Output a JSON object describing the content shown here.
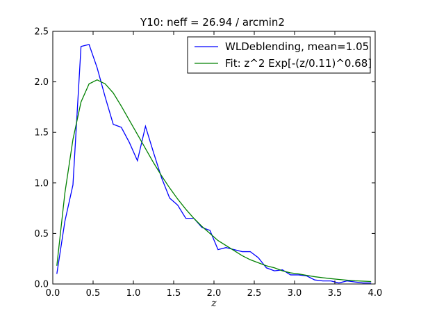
{
  "chart_data": {
    "type": "line",
    "title": "Y10: neff = 26.94 / arcmin2",
    "xlabel": "z",
    "ylabel": "",
    "xlim": [
      0.0,
      4.0
    ],
    "ylim": [
      0.0,
      2.5
    ],
    "xticks": [
      "0.0",
      "0.5",
      "1.0",
      "1.5",
      "2.0",
      "2.5",
      "3.0",
      "3.5",
      "4.0"
    ],
    "yticks": [
      "0.0",
      "0.5",
      "1.0",
      "1.5",
      "2.0",
      "2.5"
    ],
    "legend_position": "top-right",
    "grid": false,
    "series": [
      {
        "name": "WLDeblending, mean=1.05",
        "color": "#0000ff",
        "x": [
          0.05,
          0.15,
          0.25,
          0.35,
          0.45,
          0.55,
          0.65,
          0.75,
          0.85,
          0.95,
          1.05,
          1.15,
          1.25,
          1.35,
          1.45,
          1.55,
          1.65,
          1.75,
          1.85,
          1.95,
          2.05,
          2.15,
          2.25,
          2.35,
          2.45,
          2.55,
          2.65,
          2.75,
          2.85,
          2.95,
          3.05,
          3.15,
          3.25,
          3.35,
          3.45,
          3.55,
          3.65,
          3.75,
          3.85,
          3.95
        ],
        "y": [
          0.1,
          0.62,
          0.98,
          2.35,
          2.37,
          2.14,
          1.85,
          1.58,
          1.55,
          1.4,
          1.22,
          1.56,
          1.3,
          1.05,
          0.85,
          0.78,
          0.65,
          0.65,
          0.56,
          0.53,
          0.34,
          0.36,
          0.34,
          0.32,
          0.32,
          0.26,
          0.16,
          0.13,
          0.14,
          0.09,
          0.09,
          0.08,
          0.04,
          0.03,
          0.03,
          0.01,
          0.03,
          0.02,
          0.01,
          0.01
        ]
      },
      {
        "name": "Fit: z^2 Exp[-(z/0.11)^0.68]",
        "color": "#008000",
        "x": [
          0.05,
          0.15,
          0.25,
          0.35,
          0.45,
          0.55,
          0.65,
          0.75,
          0.85,
          0.95,
          1.05,
          1.15,
          1.25,
          1.35,
          1.45,
          1.55,
          1.65,
          1.75,
          1.85,
          1.95,
          2.05,
          2.15,
          2.25,
          2.35,
          2.45,
          2.55,
          2.65,
          2.75,
          2.85,
          2.95,
          3.05,
          3.15,
          3.25,
          3.35,
          3.45,
          3.55,
          3.65,
          3.75,
          3.85,
          3.95
        ],
        "y": [
          0.18,
          0.9,
          1.43,
          1.8,
          1.98,
          2.02,
          1.98,
          1.89,
          1.76,
          1.62,
          1.48,
          1.34,
          1.2,
          1.07,
          0.95,
          0.84,
          0.74,
          0.65,
          0.57,
          0.5,
          0.43,
          0.38,
          0.33,
          0.28,
          0.24,
          0.21,
          0.18,
          0.16,
          0.13,
          0.11,
          0.1,
          0.085,
          0.072,
          0.062,
          0.053,
          0.045,
          0.038,
          0.032,
          0.028,
          0.024
        ]
      }
    ]
  }
}
